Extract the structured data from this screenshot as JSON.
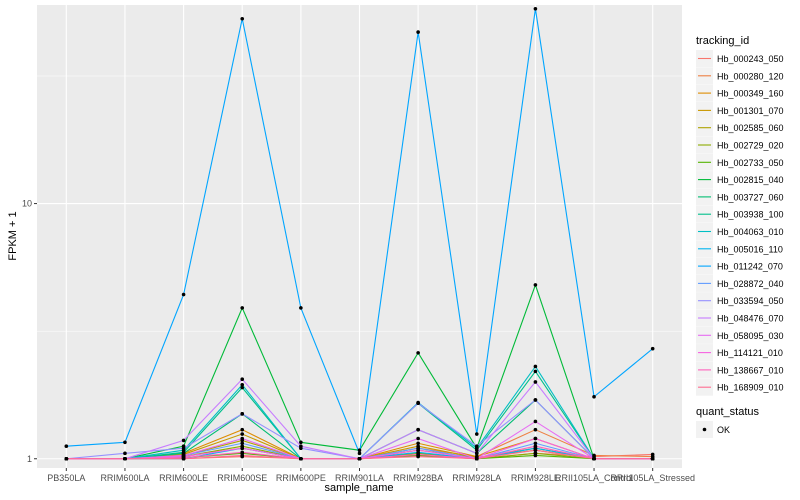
{
  "chart_data": {
    "type": "line",
    "xlabel": "sample_name",
    "ylabel": "FPKM + 1",
    "y_scale": "log10",
    "ylim": [
      0.92,
      60
    ],
    "y_ticks": [
      {
        "value": 1,
        "label": "1"
      },
      {
        "value": 10,
        "label": "10"
      }
    ],
    "grid": true,
    "categories": [
      "PB350LA",
      "RRIM600LA",
      "RRIM600LE",
      "RRIM600SE",
      "RRIM600PE",
      "RRIM901LA",
      "RRIM928BA",
      "RRIM928LA",
      "RRIM928LE",
      "RRII105LA_Control",
      "RRII105LA_Stressed"
    ],
    "legend": {
      "title": "tracking_id",
      "position": "right"
    },
    "quant_legend": {
      "title": "quant_status",
      "entries": [
        "OK"
      ]
    },
    "series": [
      {
        "name": "Hb_000243_050",
        "color": "#F8766D",
        "values": [
          1.0,
          1.0,
          1.0,
          1.02,
          1.0,
          1.0,
          1.03,
          1.0,
          1.05,
          1.02,
          1.04
        ]
      },
      {
        "name": "Hb_000280_120",
        "color": "#EE8043",
        "values": [
          1.0,
          1.0,
          1.02,
          1.1,
          1.0,
          1.0,
          1.1,
          1.02,
          1.3,
          1.03,
          1.02
        ]
      },
      {
        "name": "Hb_000349_160",
        "color": "#DE8C00",
        "values": [
          1.0,
          1.0,
          1.05,
          1.3,
          1.0,
          1.0,
          1.15,
          1.02,
          1.2,
          1.0,
          1.0
        ]
      },
      {
        "name": "Hb_001301_070",
        "color": "#C99800",
        "values": [
          1.0,
          1.0,
          1.04,
          1.25,
          1.0,
          1.0,
          1.12,
          1.01,
          1.1,
          1.0,
          1.0
        ]
      },
      {
        "name": "Hb_002585_060",
        "color": "#AEA200",
        "values": [
          1.0,
          1.0,
          1.03,
          1.18,
          1.0,
          1.0,
          1.08,
          1.01,
          1.08,
          1.0,
          1.0
        ]
      },
      {
        "name": "Hb_002729_020",
        "color": "#8BAB00",
        "values": [
          1.0,
          1.0,
          1.02,
          1.12,
          1.0,
          1.0,
          1.05,
          1.0,
          1.05,
          1.0,
          1.0
        ]
      },
      {
        "name": "Hb_002733_050",
        "color": "#53B400",
        "values": [
          1.0,
          1.0,
          1.01,
          1.05,
          1.0,
          1.0,
          1.03,
          1.0,
          1.03,
          1.0,
          1.0
        ]
      },
      {
        "name": "Hb_002815_040",
        "color": "#00BA38",
        "values": [
          1.0,
          1.0,
          1.12,
          3.9,
          1.16,
          1.08,
          2.6,
          1.1,
          4.8,
          1.0,
          1.0
        ]
      },
      {
        "name": "Hb_003727_060",
        "color": "#00BD71",
        "values": [
          1.0,
          1.0,
          1.05,
          1.5,
          1.0,
          1.0,
          1.3,
          1.05,
          1.7,
          1.0,
          1.0
        ]
      },
      {
        "name": "Hb_003938_100",
        "color": "#00C08B",
        "values": [
          1.0,
          1.0,
          1.06,
          1.9,
          1.0,
          1.0,
          1.65,
          1.08,
          2.2,
          1.0,
          1.0
        ]
      },
      {
        "name": "Hb_004063_010",
        "color": "#00BFC4",
        "values": [
          1.0,
          1.0,
          1.08,
          1.95,
          1.0,
          1.0,
          1.66,
          1.1,
          2.3,
          1.0,
          1.0
        ]
      },
      {
        "name": "Hb_005016_110",
        "color": "#00B4F0",
        "values": [
          1.0,
          1.0,
          1.0,
          1.1,
          1.0,
          1.0,
          1.06,
          1.0,
          1.1,
          1.0,
          1.0
        ]
      },
      {
        "name": "Hb_011242_070",
        "color": "#00A5FF",
        "values": [
          1.12,
          1.16,
          4.4,
          53.0,
          3.9,
          1.05,
          47.0,
          1.25,
          58.0,
          1.75,
          2.7
        ]
      },
      {
        "name": "Hb_028872_040",
        "color": "#619CFF",
        "values": [
          1.0,
          1.0,
          1.03,
          1.15,
          1.0,
          1.0,
          1.1,
          1.0,
          1.15,
          1.0,
          1.0
        ]
      },
      {
        "name": "Hb_033594_050",
        "color": "#9590FF",
        "values": [
          1.0,
          1.05,
          1.1,
          1.5,
          1.1,
          1.0,
          1.65,
          1.12,
          1.7,
          1.0,
          1.0
        ]
      },
      {
        "name": "Hb_048476_070",
        "color": "#C77CFF",
        "values": [
          1.0,
          1.0,
          1.18,
          2.05,
          1.12,
          1.0,
          1.3,
          1.05,
          2.0,
          1.0,
          1.0
        ]
      },
      {
        "name": "Hb_058095_030",
        "color": "#E76BF3",
        "values": [
          1.0,
          1.0,
          1.03,
          1.2,
          1.0,
          1.0,
          1.2,
          1.0,
          1.4,
          1.0,
          1.0
        ]
      },
      {
        "name": "Hb_114121_010",
        "color": "#F763E0",
        "values": [
          1.0,
          1.0,
          1.02,
          1.1,
          1.0,
          1.0,
          1.08,
          1.0,
          1.2,
          1.0,
          1.0
        ]
      },
      {
        "name": "Hb_138667_010",
        "color": "#FF62BC",
        "values": [
          1.0,
          1.0,
          1.01,
          1.06,
          1.0,
          1.0,
          1.04,
          1.0,
          1.12,
          1.0,
          1.0
        ]
      },
      {
        "name": "Hb_168909_010",
        "color": "#FF6C91",
        "values": [
          1.0,
          1.0,
          1.0,
          1.03,
          1.0,
          1.0,
          1.02,
          1.0,
          1.08,
          1.0,
          1.0
        ]
      }
    ],
    "colors": {
      "panel_background": "#EBEBEB",
      "grid_major": "#FFFFFF",
      "point": "#000000"
    }
  }
}
